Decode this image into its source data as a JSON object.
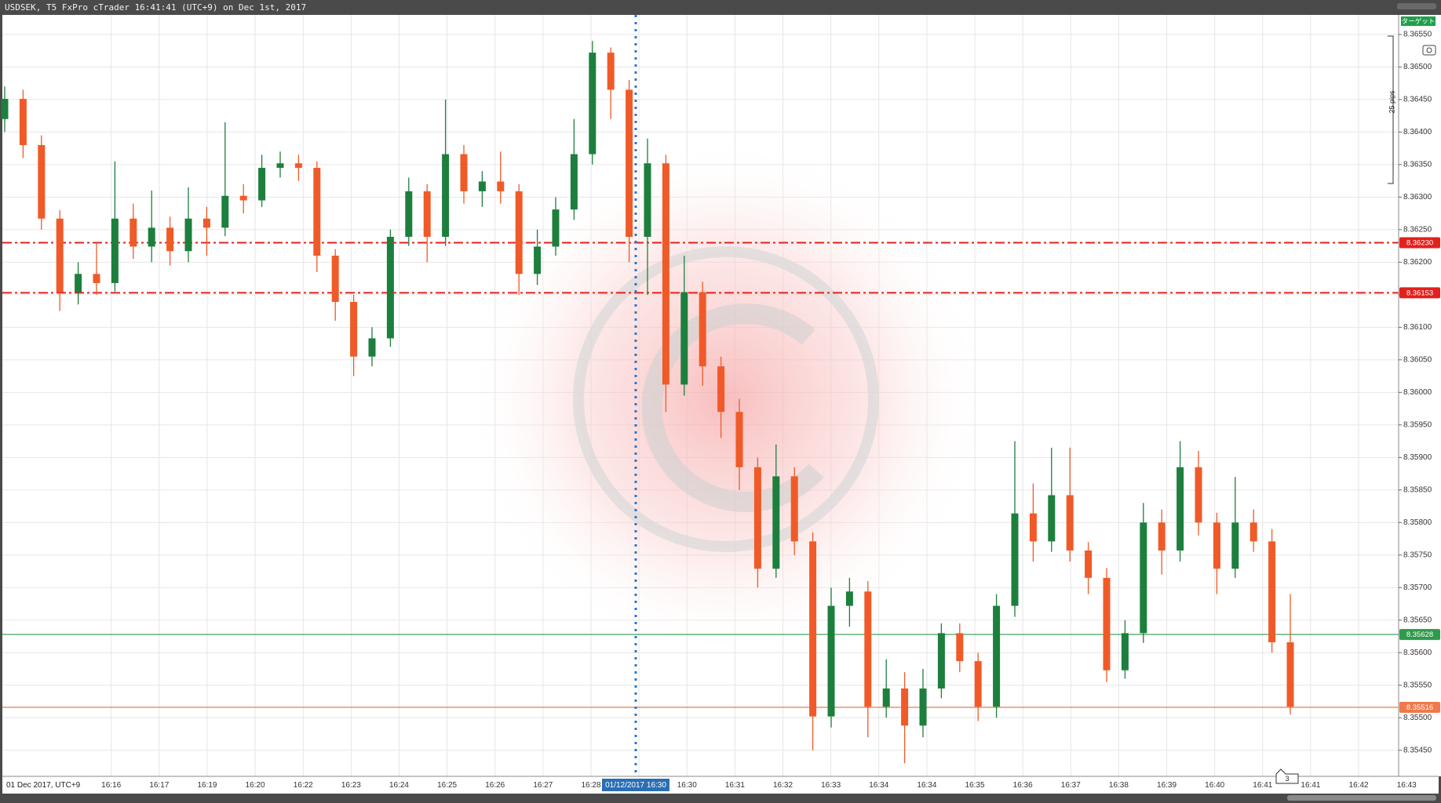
{
  "title": "USDSEK, T5 FxPro cTrader 16:41:41 (UTC+9) on Dec 1st, 2017",
  "chart_data": {
    "type": "candlestick",
    "up_color": "#1d7f3d",
    "down_color": "#f05a28",
    "open": [
      8.3642,
      8.36451,
      8.3638,
      8.36267,
      8.36154,
      8.36182,
      8.36168,
      8.36267,
      8.36224,
      8.36253,
      8.36217,
      8.36267,
      8.36253,
      8.36302,
      8.36295,
      8.36345,
      8.36352,
      8.36345,
      8.3621,
      8.36139,
      8.36055,
      8.36083,
      8.36239,
      8.36309,
      8.36239,
      8.36366,
      8.36309,
      8.36324,
      8.36309,
      8.36182,
      8.36224,
      8.36281,
      8.36366,
      8.36522,
      8.36465,
      8.36239,
      8.36352,
      8.36012,
      8.36154,
      8.3604,
      8.3597,
      8.35885,
      8.35729,
      8.35871,
      8.35771,
      8.35502,
      8.35672,
      8.35694,
      8.35517,
      8.35545,
      8.35488,
      8.35545,
      8.3563,
      8.35587,
      8.35517,
      8.35672,
      8.35814,
      8.35771,
      8.35842,
      8.35757,
      8.35715,
      8.35573,
      8.3563,
      8.358,
      8.35757,
      8.35885,
      8.358,
      8.35729,
      8.358,
      8.35771,
      8.35616
    ],
    "high": [
      8.3647,
      8.36465,
      8.36395,
      8.3628,
      8.362,
      8.3623,
      8.36355,
      8.3629,
      8.3631,
      8.3627,
      8.36315,
      8.36285,
      8.36415,
      8.3632,
      8.36365,
      8.3637,
      8.36365,
      8.36355,
      8.3622,
      8.3615,
      8.361,
      8.3625,
      8.3633,
      8.3632,
      8.3645,
      8.3638,
      8.3634,
      8.3637,
      8.3632,
      8.3625,
      8.363,
      8.3642,
      8.3654,
      8.3653,
      8.3648,
      8.3639,
      8.36365,
      8.3621,
      8.3617,
      8.36055,
      8.3599,
      8.359,
      8.3592,
      8.35885,
      8.35785,
      8.357,
      8.35715,
      8.3571,
      8.3559,
      8.3557,
      8.35575,
      8.35645,
      8.35645,
      8.356,
      8.3569,
      8.35925,
      8.3586,
      8.35915,
      8.35915,
      8.3577,
      8.3573,
      8.3565,
      8.3583,
      8.3582,
      8.35925,
      8.3591,
      8.35815,
      8.3587,
      8.3582,
      8.3579,
      8.3569
    ],
    "low": [
      8.364,
      8.3636,
      8.3625,
      8.36125,
      8.36135,
      8.3615,
      8.36155,
      8.36205,
      8.362,
      8.36195,
      8.362,
      8.3621,
      8.3624,
      8.36275,
      8.36285,
      8.3633,
      8.36325,
      8.36185,
      8.3611,
      8.36025,
      8.3604,
      8.3607,
      8.36225,
      8.362,
      8.36225,
      8.3629,
      8.36285,
      8.3629,
      8.3615,
      8.36165,
      8.3621,
      8.36265,
      8.3635,
      8.3642,
      8.362,
      8.3615,
      8.3597,
      8.35995,
      8.3601,
      8.3593,
      8.3585,
      8.357,
      8.35715,
      8.3575,
      8.3545,
      8.35485,
      8.3564,
      8.3547,
      8.355,
      8.3543,
      8.3547,
      8.3553,
      8.3557,
      8.35495,
      8.355,
      8.35655,
      8.3574,
      8.35755,
      8.3574,
      8.3569,
      8.35555,
      8.3556,
      8.35615,
      8.3572,
      8.3574,
      8.3578,
      8.3569,
      8.35715,
      8.35755,
      8.356,
      8.35505
    ],
    "close": [
      8.36451,
      8.3638,
      8.36267,
      8.36154,
      8.36182,
      8.36168,
      8.36267,
      8.36224,
      8.36253,
      8.36217,
      8.36267,
      8.36253,
      8.36302,
      8.36295,
      8.36345,
      8.36352,
      8.36345,
      8.3621,
      8.36139,
      8.36055,
      8.36083,
      8.36239,
      8.36309,
      8.36239,
      8.36366,
      8.36309,
      8.36324,
      8.36309,
      8.36182,
      8.36224,
      8.36281,
      8.36366,
      8.36522,
      8.36465,
      8.36239,
      8.36352,
      8.36012,
      8.36154,
      8.3604,
      8.3597,
      8.35885,
      8.35729,
      8.35871,
      8.35771,
      8.35502,
      8.35672,
      8.35694,
      8.35517,
      8.35545,
      8.35488,
      8.35545,
      8.3563,
      8.35587,
      8.35517,
      8.35672,
      8.35814,
      8.35771,
      8.35842,
      8.35757,
      8.35715,
      8.35573,
      8.3563,
      8.358,
      8.35757,
      8.35885,
      8.358,
      8.35729,
      8.358,
      8.35771,
      8.35616,
      8.35517
    ],
    "ylim": [
      8.3541,
      8.3658
    ],
    "yticks": [
      {
        "value": 8.3655,
        "label": "8.36550"
      },
      {
        "value": 8.365,
        "label": "8.36500"
      },
      {
        "value": 8.3645,
        "label": "8.36450"
      },
      {
        "value": 8.364,
        "label": "8.36400"
      },
      {
        "value": 8.3635,
        "label": "8.36350"
      },
      {
        "value": 8.363,
        "label": "8.36300"
      },
      {
        "value": 8.3625,
        "label": "8.36250"
      },
      {
        "value": 8.362,
        "label": "8.36200"
      },
      {
        "value": 8.3615,
        "label": "8.36150"
      },
      {
        "value": 8.361,
        "label": "8.36100"
      },
      {
        "value": 8.3605,
        "label": "8.36050"
      },
      {
        "value": 8.36,
        "label": "8.36000"
      },
      {
        "value": 8.3595,
        "label": "8.35950"
      },
      {
        "value": 8.359,
        "label": "8.35900"
      },
      {
        "value": 8.3585,
        "label": "8.35850"
      },
      {
        "value": 8.358,
        "label": "8.35800"
      },
      {
        "value": 8.3575,
        "label": "8.35750"
      },
      {
        "value": 8.357,
        "label": "8.35700"
      },
      {
        "value": 8.3565,
        "label": "8.35650"
      },
      {
        "value": 8.356,
        "label": "8.35600"
      },
      {
        "value": 8.3555,
        "label": "8.35550"
      },
      {
        "value": 8.355,
        "label": "8.35500"
      },
      {
        "value": 8.3545,
        "label": "8.35450"
      }
    ],
    "grid": true,
    "levels": [
      {
        "value": 8.3623,
        "label": "8.36230",
        "color": "#e3201c",
        "style": "dashdot"
      },
      {
        "value": 8.36153,
        "label": "8.36153",
        "color": "#e3201c",
        "style": "dashdot"
      },
      {
        "value": 8.35628,
        "label": "8.35628",
        "color": "#2f9a4c",
        "style": "solid"
      },
      {
        "value": 8.35516,
        "label": "8.35516",
        "color": "#f0784a",
        "style": "solid"
      }
    ],
    "date_label": "01 Dec 2017, UTC+9",
    "x_labels": [
      "16:16",
      "16:17",
      "16:19",
      "16:20",
      "16:22",
      "16:23",
      "16:24",
      "16:25",
      "16:26",
      "16:27",
      "16:28",
      null,
      "16:30",
      "16:31",
      "16:32",
      "16:33",
      "16:34",
      "16:34",
      "16:35",
      "16:36",
      "16:37",
      "16:38",
      "16:39",
      "16:40",
      "16:41",
      "16:41",
      "16:42",
      "16:43"
    ],
    "crosshair_label": "01/12/2017 16:30",
    "pips_label": "25 pips",
    "target_label": "ターゲット",
    "bar_count_label": "3"
  }
}
